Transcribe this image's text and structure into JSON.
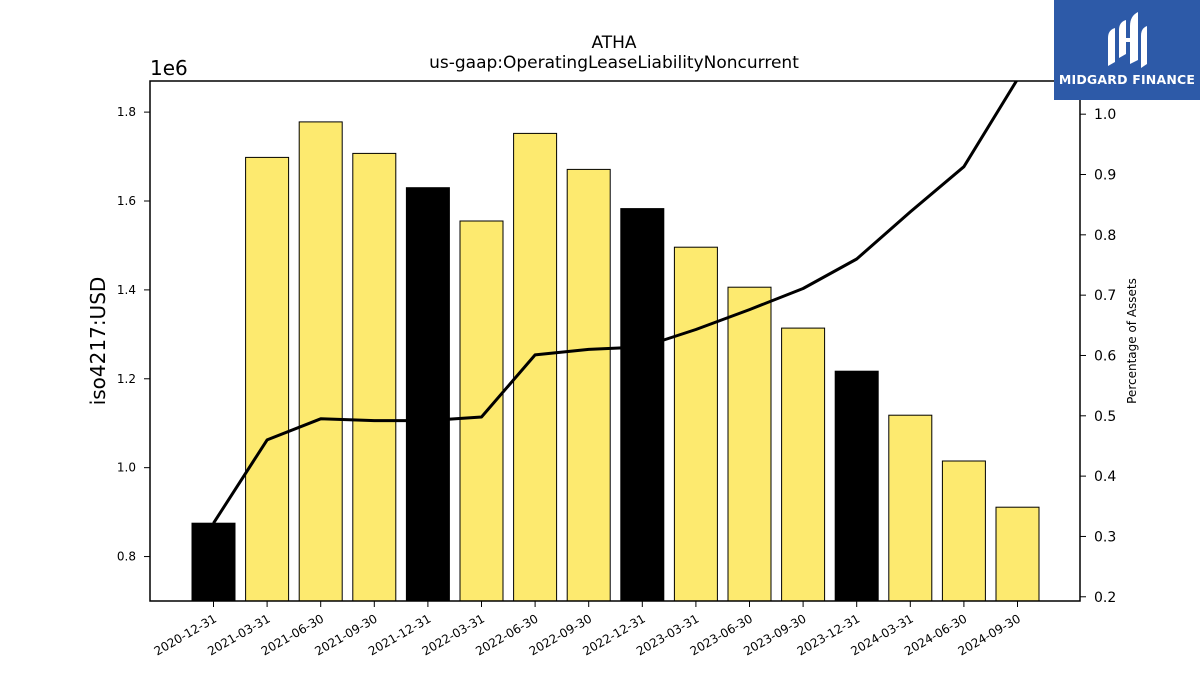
{
  "chart_data": {
    "type": "bar",
    "title": "ATHA",
    "subtitle": "us-gaap:OperatingLeaseLiabilityNoncurrent",
    "ylabel": "iso4217:USD",
    "y2label": "Percentage of Assets",
    "y_offset_label": "1e6",
    "ylim": [
      700000,
      1870000
    ],
    "y2lim": [
      0.193,
      1.055
    ],
    "y_ticks": [
      0.8,
      1.0,
      1.2,
      1.4,
      1.6,
      1.8
    ],
    "y2_ticks": [
      0.2,
      0.3,
      0.4,
      0.5,
      0.6,
      0.7,
      0.8,
      0.9,
      1.0
    ],
    "categories": [
      "2020-12-31",
      "2021-03-31",
      "2021-06-30",
      "2021-09-30",
      "2021-12-31",
      "2022-03-31",
      "2022-06-30",
      "2022-09-30",
      "2022-12-31",
      "2023-03-31",
      "2023-06-30",
      "2023-09-30",
      "2023-12-31",
      "2024-03-31",
      "2024-06-30",
      "2024-09-30"
    ],
    "series": [
      {
        "type": "bar",
        "axis": "left",
        "values": [
          875000,
          1698000,
          1778000,
          1707000,
          1630000,
          1555000,
          1752000,
          1671000,
          1583000,
          1496000,
          1406000,
          1314000,
          1217000,
          1118000,
          1015000,
          911000
        ],
        "colors": [
          "#000000",
          "#fdea6f",
          "#fdea6f",
          "#fdea6f",
          "#000000",
          "#fdea6f",
          "#fdea6f",
          "#fdea6f",
          "#000000",
          "#fdea6f",
          "#fdea6f",
          "#fdea6f",
          "#000000",
          "#fdea6f",
          "#fdea6f",
          "#fdea6f"
        ]
      },
      {
        "type": "line",
        "axis": "right",
        "color": "#000000",
        "values": [
          0.322,
          0.46,
          0.495,
          0.492,
          0.492,
          0.498,
          0.601,
          0.61,
          0.614,
          0.643,
          0.676,
          0.711,
          0.76,
          0.838,
          0.913,
          1.058
        ]
      }
    ],
    "grid": false,
    "legend": "none"
  },
  "logo": {
    "text": "MIDGARD FINANCE",
    "background": "#2d5aa8",
    "icon": "midgard-logo-icon"
  }
}
